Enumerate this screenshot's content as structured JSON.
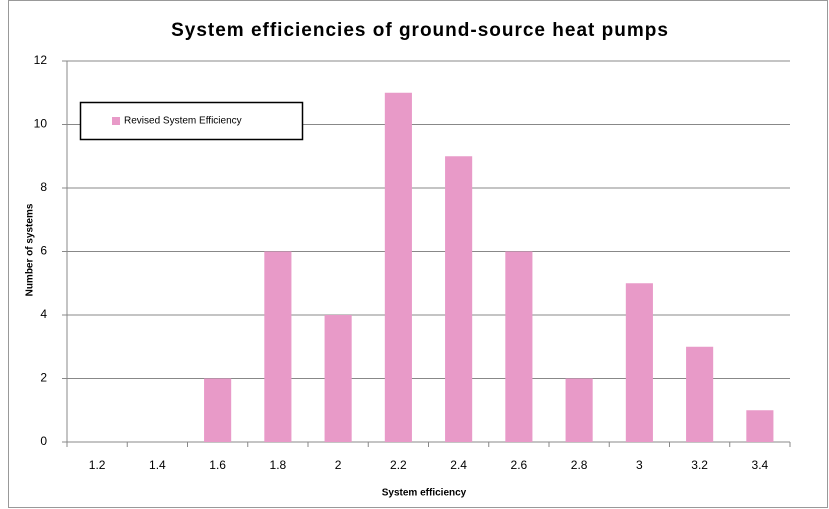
{
  "chart_data": {
    "type": "bar",
    "title": "System efficiencies of ground-source heat pumps",
    "x_label": "System efficiency",
    "y_label": "Number of systems",
    "categories": [
      "1.2",
      "1.4",
      "1.6",
      "1.8",
      "2",
      "2.2",
      "2.4",
      "2.6",
      "2.8",
      "3",
      "3.2",
      "3.4"
    ],
    "series": [
      {
        "name": "Revised System Efficiency",
        "color": "#e89ac8",
        "values": [
          0,
          0,
          2,
          6,
          4,
          11,
          9,
          6,
          2,
          5,
          3,
          1
        ]
      }
    ],
    "ylim": [
      0,
      12
    ],
    "yticks": [
      0,
      2,
      4,
      6,
      8,
      10,
      12
    ],
    "grid": true,
    "legend": "top-left"
  }
}
